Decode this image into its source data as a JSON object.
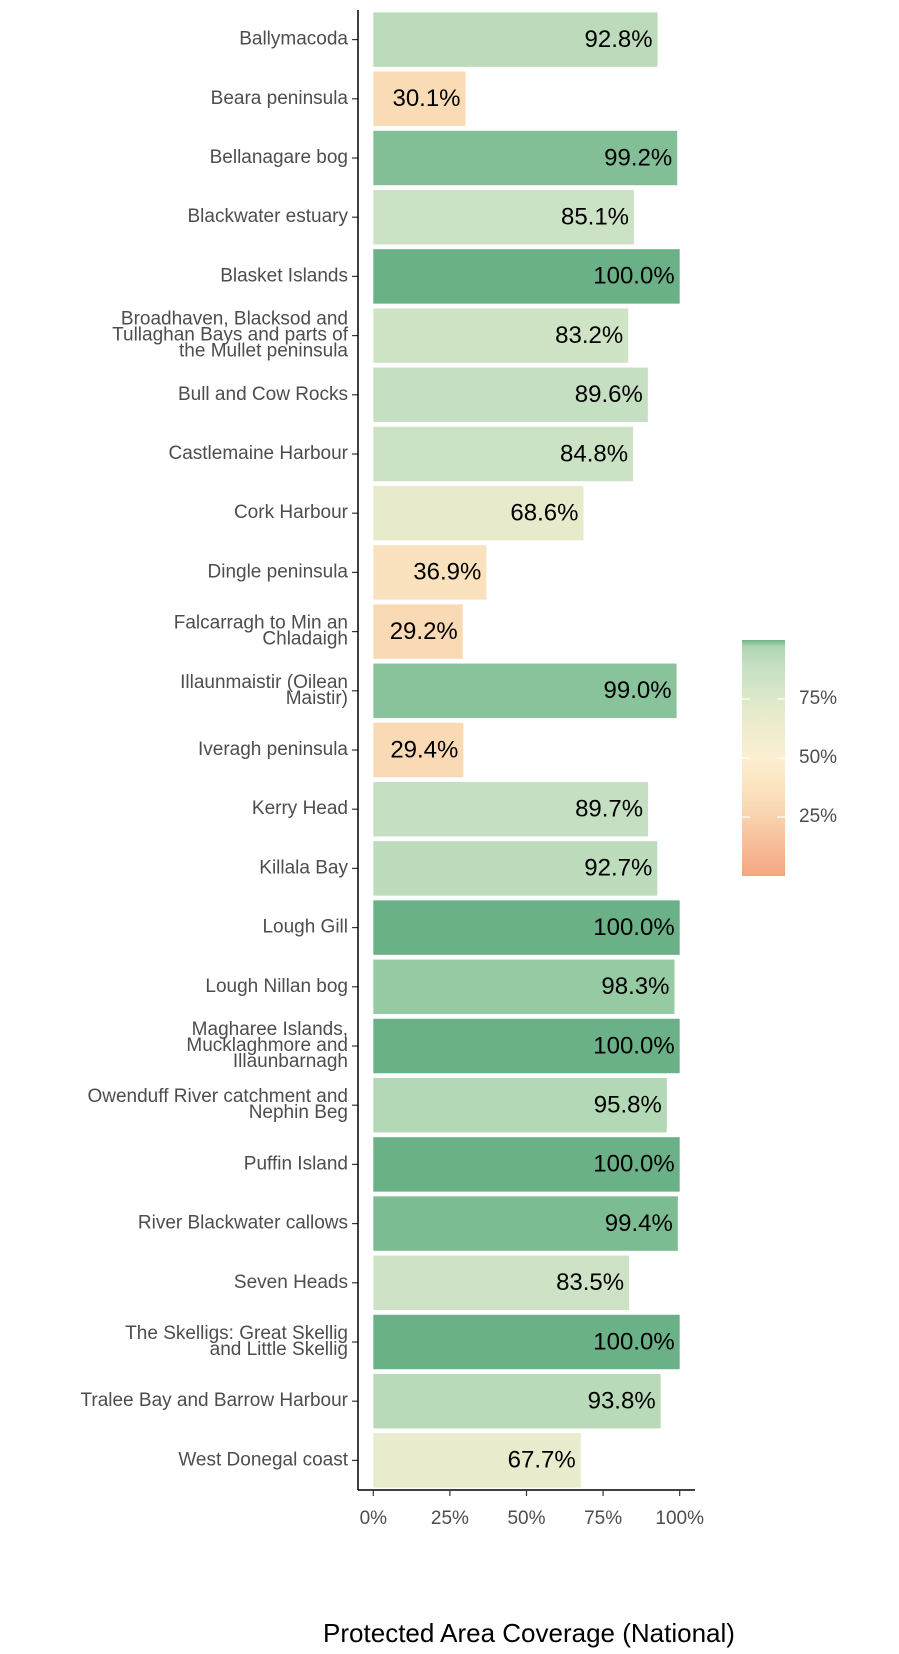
{
  "chart_data": {
    "type": "barh",
    "x_label": "Protected Area Coverage (National)",
    "categories": [
      "Ballymacoda",
      "Beara peninsula",
      "Bellanagare bog",
      "Blackwater estuary",
      "Blasket Islands",
      "Broadhaven, Blacksod and Tullaghan Bays and parts of the Mullet peninsula",
      "Bull and Cow Rocks",
      "Castlemaine Harbour",
      "Cork Harbour",
      "Dingle peninsula",
      "Falcarragh to Min an Chladaigh",
      "Illaunmaistir (Oilean Maistir)",
      "Iveragh peninsula",
      "Kerry Head",
      "Killala Bay",
      "Lough Gill",
      "Lough Nillan bog",
      "Magharee Islands, Mucklaghmore and Illaunbarnagh",
      "Owenduff River catchment and Nephin Beg",
      "Puffin Island",
      "River Blackwater callows",
      "Seven Heads",
      "The Skelligs: Great Skellig and Little Skellig",
      "Tralee Bay and Barrow Harbour",
      "West Donegal coast"
    ],
    "values": [
      92.8,
      30.1,
      99.2,
      85.1,
      100.0,
      83.2,
      89.6,
      84.8,
      68.6,
      36.9,
      29.2,
      99.0,
      29.4,
      89.7,
      92.7,
      100.0,
      98.3,
      100.0,
      95.8,
      100.0,
      99.4,
      83.5,
      100.0,
      93.8,
      67.7
    ],
    "value_labels": [
      "92.8%",
      "30.1%",
      "99.2%",
      "85.1%",
      "100.0%",
      "83.2%",
      "89.6%",
      "84.8%",
      "68.6%",
      "36.9%",
      "29.2%",
      "99.0%",
      "29.4%",
      "89.7%",
      "92.7%",
      "100.0%",
      "98.3%",
      "100.0%",
      "95.8%",
      "100.0%",
      "99.4%",
      "83.5%",
      "100.0%",
      "93.8%",
      "67.7%"
    ],
    "xlim": [
      -5,
      105
    ],
    "xticks": [
      {
        "value": 0,
        "label": "0%"
      },
      {
        "value": 25,
        "label": "25%"
      },
      {
        "value": 50,
        "label": "50%"
      },
      {
        "value": 75,
        "label": "75%"
      },
      {
        "value": 100,
        "label": "100%"
      }
    ],
    "colorbar": {
      "lim": [
        0,
        100
      ],
      "ticks": [
        {
          "value": 25,
          "label": "25%"
        },
        {
          "value": 50,
          "label": "50%"
        },
        {
          "value": 75,
          "label": "75%"
        }
      ],
      "stops": [
        [
          0,
          "#f4a582"
        ],
        [
          30,
          "#f9dbb5"
        ],
        [
          50,
          "#fcefd0"
        ],
        [
          70,
          "#e5ebcc"
        ],
        [
          90,
          "#c3dfc1"
        ],
        [
          97,
          "#b0d6b3"
        ],
        [
          99,
          "#88c39b"
        ],
        [
          100,
          "#6ab187"
        ]
      ]
    },
    "grid": false
  }
}
